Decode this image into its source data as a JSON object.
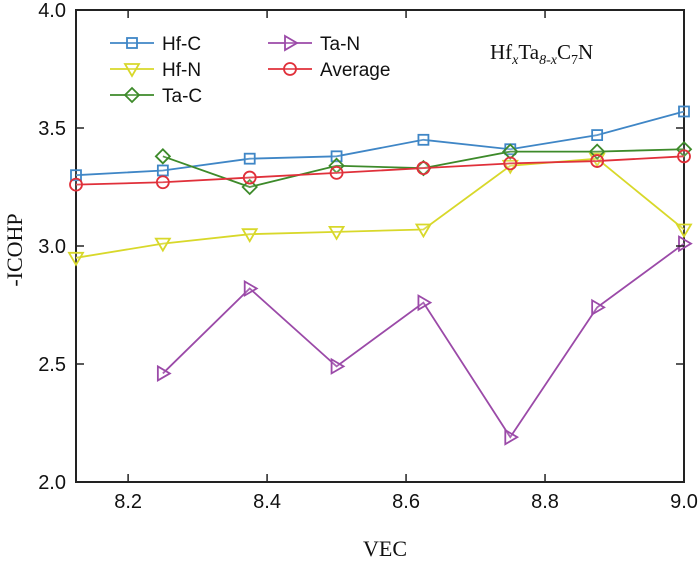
{
  "chart_data": {
    "type": "line",
    "title": "",
    "xlabel": "VEC",
    "ylabel": "-ICOHP",
    "xlim": [
      8.125,
      9.0
    ],
    "ylim": [
      2.0,
      4.0
    ],
    "xticks": [
      8.2,
      8.4,
      8.6,
      8.8,
      9.0
    ],
    "xtick_labels": [
      "8.2",
      "8.4",
      "8.6",
      "8.8",
      "9.0"
    ],
    "yticks": [
      2.0,
      2.5,
      3.0,
      3.5,
      4.0
    ],
    "ytick_labels": [
      "2.0",
      "2.5",
      "3.0",
      "3.5",
      "4.0"
    ],
    "grid": false,
    "legend_placement": "top-left",
    "annotation": {
      "parts": [
        {
          "text": "Hf",
          "style": "normal"
        },
        {
          "text": "x",
          "style": "sub-italic"
        },
        {
          "text": "Ta",
          "style": "normal"
        },
        {
          "text": "8-x",
          "style": "sub-italic"
        },
        {
          "text": "C",
          "style": "normal"
        },
        {
          "text": "7",
          "style": "sub"
        },
        {
          "text": "N",
          "style": "normal"
        }
      ]
    },
    "series": [
      {
        "name": "Hf-C",
        "color": "#3f86c6",
        "marker": "square",
        "x": [
          8.125,
          8.25,
          8.375,
          8.5,
          8.625,
          8.75,
          8.875,
          9.0
        ],
        "y": [
          3.3,
          3.32,
          3.37,
          3.38,
          3.45,
          3.41,
          3.47,
          3.57
        ]
      },
      {
        "name": "Hf-N",
        "color": "#d8d82a",
        "marker": "triangle-down",
        "x": [
          8.125,
          8.25,
          8.375,
          8.5,
          8.625,
          8.75,
          8.875,
          9.0
        ],
        "y": [
          2.95,
          3.01,
          3.05,
          3.06,
          3.07,
          3.34,
          3.37,
          3.07
        ]
      },
      {
        "name": "Ta-C",
        "color": "#3d8a2a",
        "marker": "diamond",
        "x": [
          8.25,
          8.375,
          8.5,
          8.625,
          8.75,
          8.875,
          9.0
        ],
        "y": [
          3.38,
          3.25,
          3.34,
          3.33,
          3.4,
          3.4,
          3.41
        ]
      },
      {
        "name": "Ta-N",
        "color": "#9b4aa8",
        "marker": "triangle-right",
        "x": [
          8.25,
          8.375,
          8.5,
          8.625,
          8.75,
          8.875,
          9.0
        ],
        "y": [
          2.46,
          2.82,
          2.49,
          2.76,
          2.19,
          2.74,
          3.01
        ]
      },
      {
        "name": "Average",
        "color": "#e0303a",
        "marker": "circle",
        "x": [
          8.125,
          8.25,
          8.375,
          8.5,
          8.625,
          8.75,
          8.875,
          9.0
        ],
        "y": [
          3.26,
          3.27,
          3.29,
          3.31,
          3.33,
          3.35,
          3.36,
          3.38
        ]
      }
    ]
  }
}
